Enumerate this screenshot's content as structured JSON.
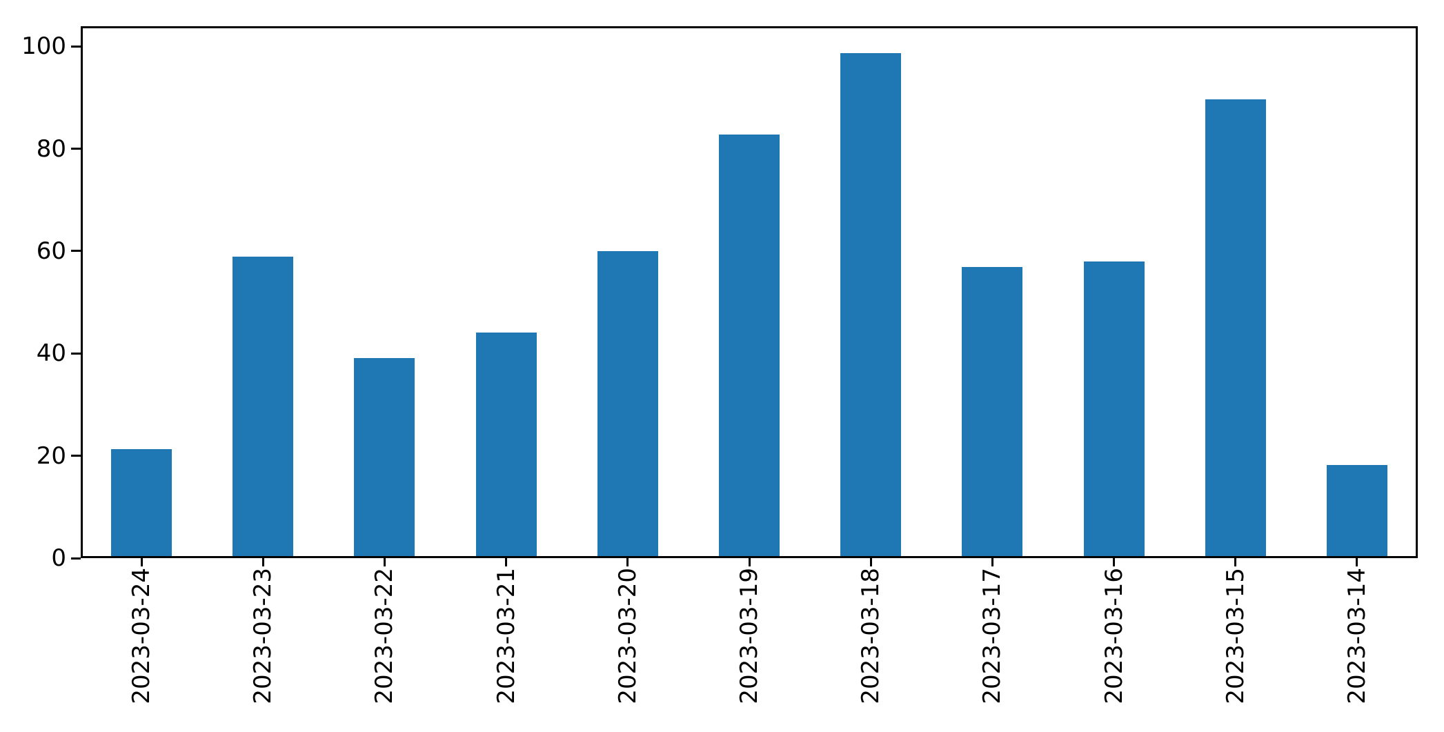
{
  "figure": {
    "background_color": "#ffffff",
    "spine_color": "#000000",
    "text_color": "#000000"
  },
  "chart_data": {
    "type": "bar",
    "categories": [
      "2023-03-24",
      "2023-03-23",
      "2023-03-22",
      "2023-03-21",
      "2023-03-20",
      "2023-03-19",
      "2023-03-18",
      "2023-03-17",
      "2023-03-16",
      "2023-03-15",
      "2023-03-14"
    ],
    "values": [
      21,
      59,
      39,
      44,
      60,
      83,
      99,
      57,
      58,
      90,
      18
    ],
    "title": "",
    "xlabel": "",
    "ylabel": "",
    "ylim": [
      0,
      103.95
    ],
    "yticks": [
      0,
      20,
      40,
      60,
      80,
      100
    ],
    "bar_color": "#1f77b4",
    "bar_width_fraction": 0.5,
    "x_tick_label_rotation_deg": 90,
    "grid": false,
    "legend_position": "none"
  }
}
